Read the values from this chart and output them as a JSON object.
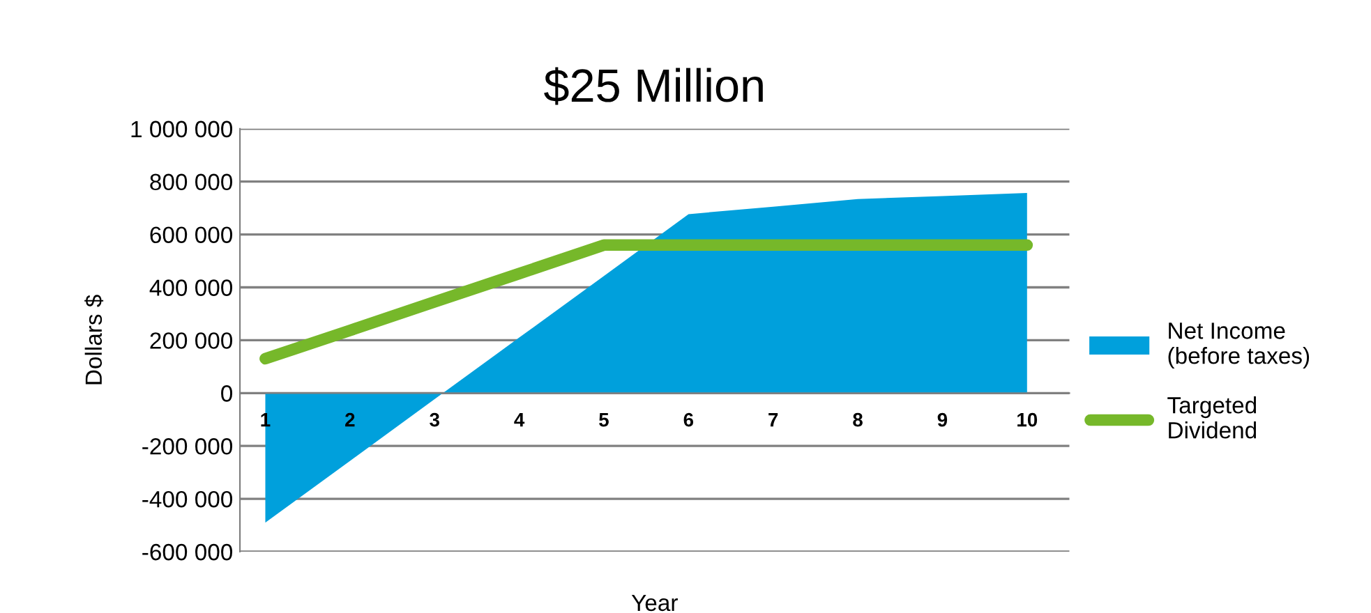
{
  "chart_data": {
    "type": "area",
    "title": "$25 Million",
    "xlabel": "Year",
    "ylabel": "Dollars $",
    "categories": [
      "1",
      "2",
      "3",
      "4",
      "5",
      "6",
      "7",
      "8",
      "9",
      "10"
    ],
    "series": [
      {
        "name": "Net Income\n(before taxes)",
        "color": "#00a0dc",
        "values": [
          -490000,
          -257000,
          -23000,
          210000,
          443000,
          677000,
          705000,
          734000,
          745000,
          757000
        ]
      },
      {
        "name": "Targeted\nDividend",
        "type": "line",
        "color": "#76b82a",
        "values": [
          130000,
          237000,
          345000,
          452000,
          560000,
          560000,
          560000,
          560000,
          560000,
          560000
        ]
      }
    ],
    "ylim": [
      -600000,
      1000000
    ],
    "yticks": [
      {
        "value": -600000,
        "label": "-600 000"
      },
      {
        "value": -400000,
        "label": "-400 000"
      },
      {
        "value": -200000,
        "label": "-200 000"
      },
      0,
      {
        "value": 200000,
        "label": "200 000"
      },
      {
        "value": 400000,
        "label": "400 000"
      },
      {
        "value": 600000,
        "label": "600 000"
      },
      {
        "value": 800000,
        "label": "800 000"
      },
      {
        "value": 1000000,
        "label": "1 000 000"
      }
    ],
    "grid": "y",
    "legend": "right",
    "marker": "none",
    "line_style": "solid"
  }
}
